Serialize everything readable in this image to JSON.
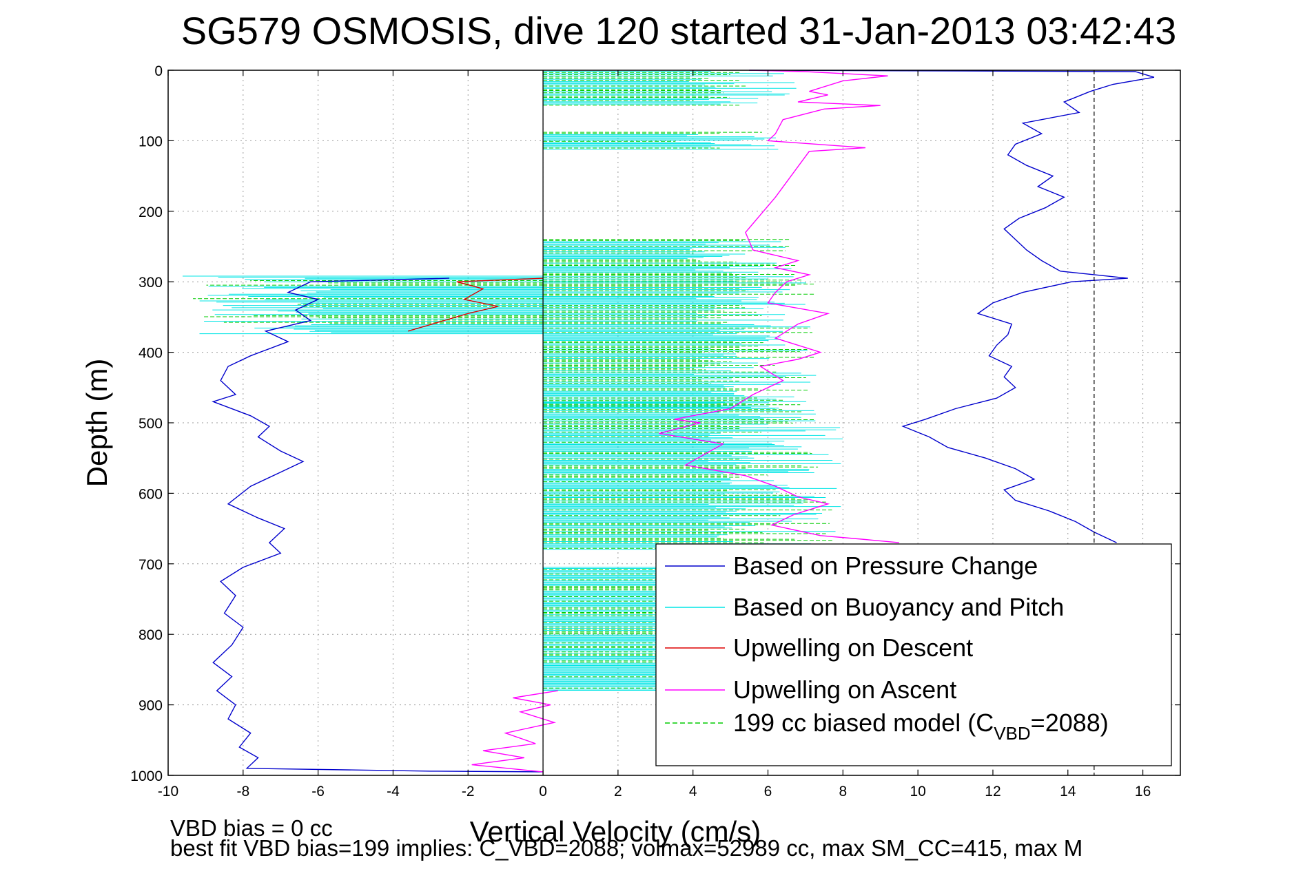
{
  "chart_data": {
    "type": "line",
    "title": "SG579 OSMOSIS, dive 120 started 31-Jan-2013 03:42:43",
    "xlabel": "Vertical Velocity (cm/s)",
    "ylabel": "Depth (m)",
    "xlim": [
      -10,
      17
    ],
    "ylim": [
      0,
      1000
    ],
    "y_reversed": true,
    "xticks": [
      -10,
      -8,
      -6,
      -4,
      -2,
      0,
      2,
      4,
      6,
      8,
      10,
      12,
      14,
      16
    ],
    "yticks": [
      0,
      100,
      200,
      300,
      400,
      500,
      600,
      700,
      800,
      900,
      1000
    ],
    "grid": true,
    "legend_position": "lower-right",
    "dashed_vertical_x": 14.7,
    "series": [
      {
        "name": "Based on Pressure Change",
        "color": "#0000cc",
        "style": "solid",
        "points": [
          [
            5.5,
            0
          ],
          [
            15.8,
            2
          ],
          [
            16.3,
            10
          ],
          [
            15.2,
            20
          ],
          [
            14.6,
            30
          ],
          [
            13.9,
            45
          ],
          [
            14.3,
            60
          ],
          [
            12.8,
            75
          ],
          [
            13.3,
            90
          ],
          [
            12.6,
            105
          ],
          [
            12.4,
            120
          ],
          [
            12.9,
            135
          ],
          [
            13.6,
            150
          ],
          [
            13.2,
            165
          ],
          [
            13.9,
            180
          ],
          [
            13.4,
            195
          ],
          [
            12.7,
            210
          ],
          [
            12.3,
            225
          ],
          [
            12.6,
            240
          ],
          [
            12.9,
            255
          ],
          [
            13.3,
            270
          ],
          [
            13.8,
            285
          ],
          [
            15.6,
            295
          ],
          [
            14.1,
            300
          ],
          [
            12.8,
            315
          ],
          [
            12.0,
            330
          ],
          [
            11.6,
            345
          ],
          [
            12.5,
            360
          ],
          [
            12.4,
            375
          ],
          [
            12.1,
            390
          ],
          [
            11.9,
            405
          ],
          [
            12.5,
            420
          ],
          [
            12.3,
            435
          ],
          [
            12.6,
            450
          ],
          [
            12.1,
            465
          ],
          [
            11.0,
            480
          ],
          [
            10.2,
            495
          ],
          [
            9.6,
            505
          ],
          [
            10.3,
            520
          ],
          [
            10.8,
            535
          ],
          [
            11.8,
            550
          ],
          [
            12.6,
            565
          ],
          [
            13.1,
            580
          ],
          [
            12.3,
            595
          ],
          [
            12.6,
            610
          ],
          [
            13.5,
            625
          ],
          [
            14.2,
            640
          ],
          [
            14.7,
            655
          ],
          [
            15.3,
            670
          ]
        ]
      },
      {
        "name": "Based on Pressure Change",
        "color": "#0000cc",
        "style": "solid",
        "points": [
          [
            -2.5,
            295
          ],
          [
            -6.2,
            300
          ],
          [
            -6.8,
            315
          ],
          [
            -6.0,
            325
          ],
          [
            -6.6,
            340
          ],
          [
            -6.2,
            355
          ],
          [
            -7.4,
            370
          ],
          [
            -6.8,
            385
          ],
          [
            -7.8,
            405
          ],
          [
            -8.4,
            420
          ],
          [
            -8.6,
            440
          ],
          [
            -8.2,
            460
          ],
          [
            -8.8,
            470
          ],
          [
            -7.8,
            490
          ],
          [
            -7.3,
            505
          ],
          [
            -7.6,
            520
          ],
          [
            -7.0,
            540
          ],
          [
            -6.4,
            555
          ],
          [
            -7.0,
            570
          ],
          [
            -7.8,
            590
          ],
          [
            -8.4,
            615
          ],
          [
            -7.6,
            635
          ],
          [
            -6.9,
            650
          ],
          [
            -7.3,
            670
          ],
          [
            -7.0,
            685
          ],
          [
            -8.0,
            705
          ],
          [
            -8.6,
            725
          ],
          [
            -8.2,
            745
          ],
          [
            -8.5,
            770
          ],
          [
            -8.0,
            790
          ],
          [
            -8.3,
            815
          ],
          [
            -8.8,
            840
          ],
          [
            -8.3,
            860
          ],
          [
            -8.7,
            880
          ],
          [
            -8.2,
            900
          ],
          [
            -8.4,
            920
          ],
          [
            -7.8,
            940
          ],
          [
            -8.1,
            960
          ],
          [
            -7.6,
            975
          ],
          [
            -7.9,
            990
          ],
          [
            -3.0,
            994
          ],
          [
            0.0,
            995
          ]
        ]
      },
      {
        "name": "Upwelling on Descent",
        "color": "#dd0000",
        "style": "solid",
        "points": [
          [
            0,
            295
          ],
          [
            -2.3,
            300
          ],
          [
            -1.6,
            310
          ],
          [
            -2.1,
            325
          ],
          [
            -1.2,
            335
          ],
          [
            -2.0,
            345
          ],
          [
            -3.6,
            370
          ]
        ]
      },
      {
        "name": "Upwelling on Ascent",
        "color": "#ff00ff",
        "style": "solid",
        "points": [
          [
            5.5,
            0
          ],
          [
            7.0,
            2
          ],
          [
            9.2,
            8
          ],
          [
            8.0,
            15
          ],
          [
            7.1,
            30
          ],
          [
            7.6,
            35
          ],
          [
            6.8,
            45
          ],
          [
            9.0,
            50
          ],
          [
            7.5,
            55
          ],
          [
            6.4,
            70
          ],
          [
            6.2,
            90
          ],
          [
            6.0,
            100
          ],
          [
            8.6,
            110
          ],
          [
            7.1,
            115
          ],
          [
            6.2,
            180
          ],
          [
            5.4,
            230
          ],
          [
            5.6,
            255
          ],
          [
            6.8,
            270
          ],
          [
            6.2,
            280
          ],
          [
            7.1,
            290
          ],
          [
            6.5,
            300
          ],
          [
            6.2,
            315
          ],
          [
            6.0,
            330
          ],
          [
            7.6,
            345
          ],
          [
            6.8,
            360
          ],
          [
            6.2,
            380
          ],
          [
            7.4,
            400
          ],
          [
            6.8,
            410
          ],
          [
            5.8,
            420
          ],
          [
            6.4,
            440
          ],
          [
            5.6,
            460
          ],
          [
            5.0,
            480
          ],
          [
            3.5,
            495
          ],
          [
            4.2,
            500
          ],
          [
            3.1,
            515
          ],
          [
            4.8,
            530
          ],
          [
            3.8,
            560
          ],
          [
            5.4,
            575
          ],
          [
            6.2,
            590
          ],
          [
            6.8,
            605
          ],
          [
            7.6,
            615
          ],
          [
            6.7,
            630
          ],
          [
            6.1,
            645
          ],
          [
            7.4,
            660
          ],
          [
            8.5,
            665
          ],
          [
            9.5,
            670
          ]
        ]
      },
      {
        "name": "Upwelling on Ascent",
        "color": "#ff00ff",
        "style": "solid",
        "points": [
          [
            0.4,
            880
          ],
          [
            -0.8,
            890
          ],
          [
            0.2,
            900
          ],
          [
            -0.6,
            910
          ],
          [
            0.3,
            925
          ],
          [
            -1.0,
            940
          ],
          [
            -0.2,
            955
          ],
          [
            -1.6,
            965
          ],
          [
            -0.5,
            975
          ],
          [
            -1.9,
            985
          ],
          [
            0.0,
            995
          ]
        ]
      }
    ],
    "hatched_bands": [
      {
        "side": "right",
        "y_start": 0,
        "y_end": 50,
        "x_extent": 6.8
      },
      {
        "side": "right",
        "y_start": 88,
        "y_end": 112,
        "x_extent": 6.3
      },
      {
        "side": "right",
        "y_start": 240,
        "y_end": 300,
        "x_extent": 7.0
      },
      {
        "side": "right",
        "y_start": 300,
        "y_end": 480,
        "x_extent": 7.3
      },
      {
        "side": "right",
        "y_start": 470,
        "y_end": 680,
        "x_extent": 8.0
      },
      {
        "side": "right",
        "y_start": 705,
        "y_end": 880,
        "x_extent": 7.0
      },
      {
        "side": "left",
        "y_start": 292,
        "y_end": 375,
        "x_extent": -9.8
      }
    ],
    "notes": [
      "VBD bias = 0 cc",
      "best fit VBD bias=199 implies: C_VBD=2088; volmax=52989 cc, max SM_CC=415, max M"
    ],
    "legend": [
      {
        "label": "Based on Pressure Change",
        "color": "#0000cc",
        "style": "solid"
      },
      {
        "label": "Based on Buoyancy and Pitch",
        "color": "#00e5e5",
        "style": "solid"
      },
      {
        "label": "Upwelling on Descent",
        "color": "#dd0000",
        "style": "solid"
      },
      {
        "label": "Upwelling on Ascent",
        "color": "#ff00ff",
        "style": "solid"
      },
      {
        "label": "199 cc biased model (C",
        "sub": "VBD",
        "suffix": "=2088)",
        "color": "#00cc00",
        "style": "dashed"
      }
    ]
  }
}
